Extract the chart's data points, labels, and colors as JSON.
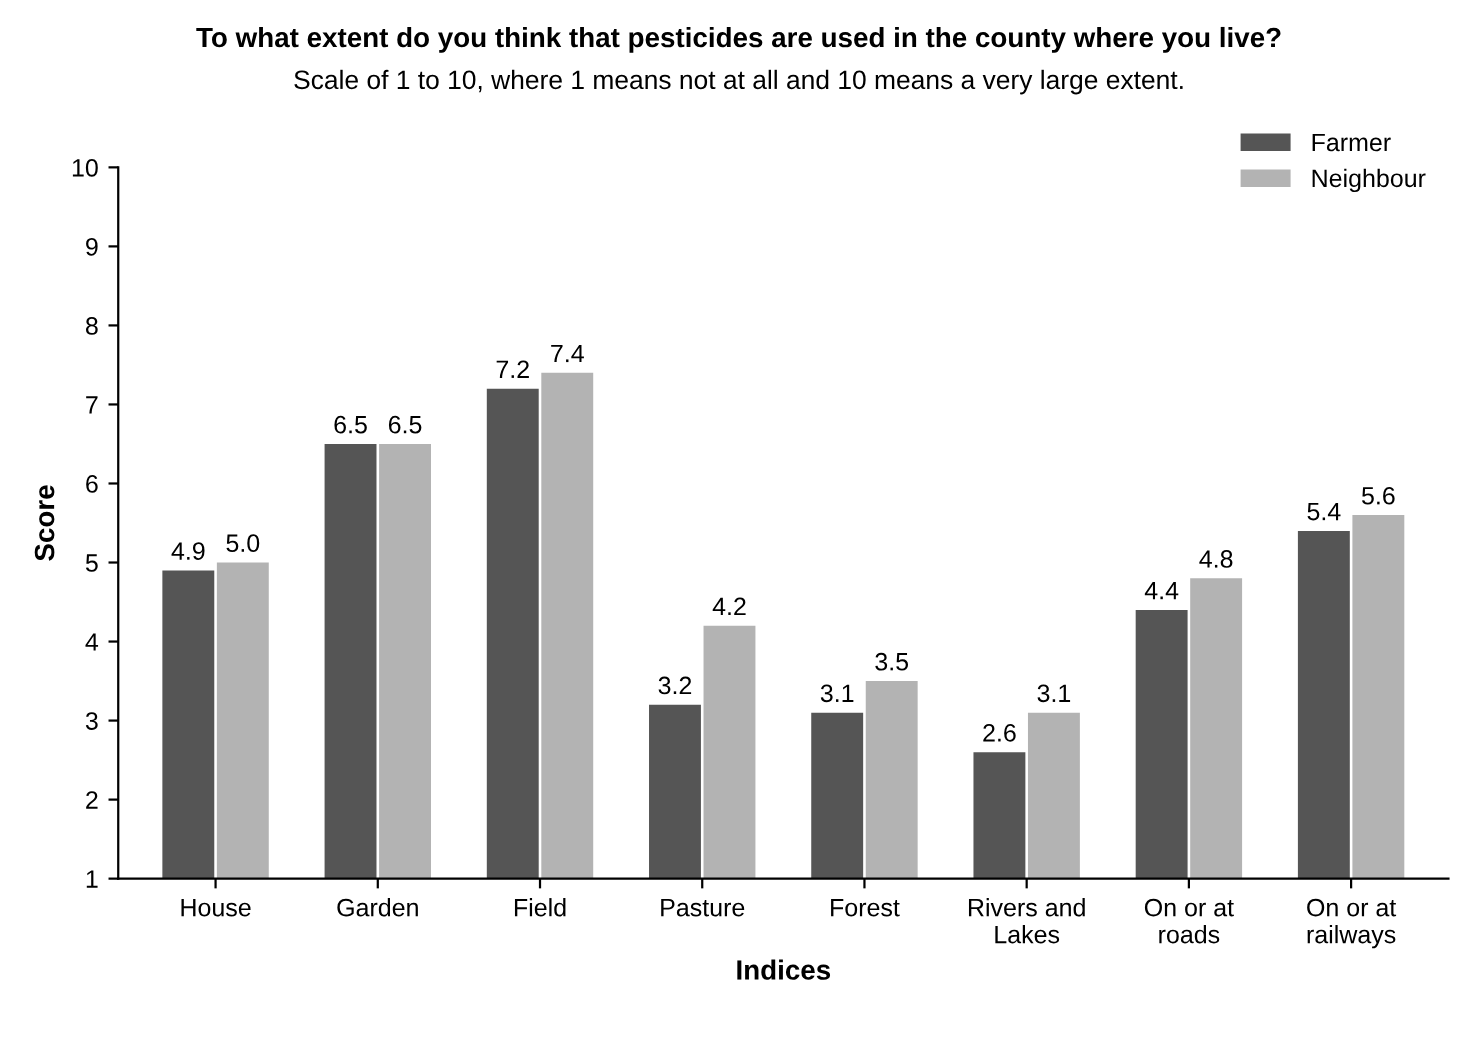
{
  "chart_data": {
    "type": "bar",
    "title": "To what extent do you think that pesticides are used in the county where you live?",
    "subtitle": "Scale of 1 to 10, where 1 means not at all and 10 means a very large extent.",
    "xlabel": "Indices",
    "ylabel": "Score",
    "categories": [
      "House",
      "Garden",
      "Field",
      "Pasture",
      "Forest",
      "Rivers and\nLakes",
      "On or at\nroads",
      "On or at\nrailways"
    ],
    "series": [
      {
        "name": "Farmer",
        "color": "#555555",
        "values": [
          4.9,
          6.5,
          7.2,
          3.2,
          3.1,
          2.6,
          4.4,
          5.4
        ],
        "value_labels": [
          "4.9",
          "6.5",
          "7.2",
          "3.2",
          "3.1",
          "2.6",
          "4.4",
          "5.4"
        ]
      },
      {
        "name": "Neighbour",
        "color": "#b3b3b3",
        "values": [
          5.0,
          6.5,
          7.4,
          4.2,
          3.5,
          3.1,
          4.8,
          5.6
        ],
        "value_labels": [
          "5.0",
          "6.5",
          "7.4",
          "4.2",
          "3.5",
          "3.1",
          "4.8",
          "5.6"
        ]
      }
    ],
    "ylim": [
      1,
      10
    ],
    "yticks": [
      1,
      2,
      3,
      4,
      5,
      6,
      7,
      8,
      9,
      10
    ],
    "legend": "top right"
  }
}
